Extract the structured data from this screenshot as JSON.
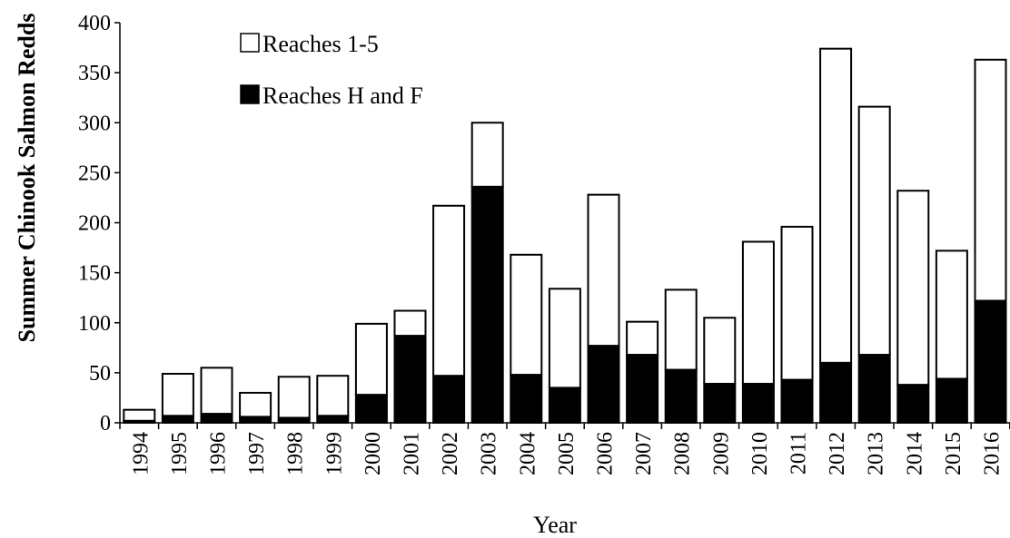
{
  "chart_data": {
    "type": "bar",
    "stacked": true,
    "categories": [
      "1994",
      "1995",
      "1996",
      "1997",
      "1998",
      "1999",
      "2000",
      "2001",
      "2002",
      "2003",
      "2004",
      "2005",
      "2006",
      "2007",
      "2008",
      "2009",
      "2010",
      "2011",
      "2012",
      "2013",
      "2014",
      "2015",
      "2016"
    ],
    "series": [
      {
        "name": "Reaches H and F",
        "color": "#000000",
        "values": [
          2,
          7,
          9,
          6,
          5,
          7,
          28,
          87,
          47,
          236,
          48,
          35,
          77,
          68,
          53,
          39,
          39,
          43,
          60,
          68,
          38,
          44,
          122
        ]
      },
      {
        "name": "Reaches 1-5",
        "color": "#ffffff",
        "values": [
          11,
          42,
          46,
          24,
          41,
          40,
          71,
          25,
          170,
          64,
          120,
          99,
          151,
          33,
          80,
          66,
          142,
          153,
          314,
          248,
          194,
          128,
          241
        ]
      }
    ],
    "title": "",
    "xlabel": "Year",
    "ylabel": "Summer Chinook Salmon Redds",
    "ylim": [
      0,
      400
    ],
    "yticks": [
      "0",
      "50",
      "100",
      "150",
      "200",
      "250",
      "300",
      "350",
      "400"
    ],
    "grid": false,
    "legend_position": "top-left"
  }
}
